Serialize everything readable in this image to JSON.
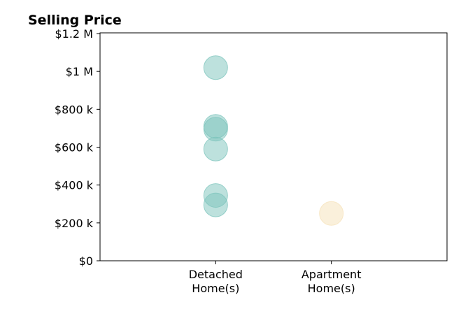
{
  "chart_data": {
    "type": "scatter",
    "title": "Selling Price",
    "xlabel": "",
    "ylabel": "",
    "categories": [
      "Detached\nHome(s)",
      "Apartment\nHome(s)"
    ],
    "xlim": [
      -1,
      2
    ],
    "ylim": [
      0,
      1200000
    ],
    "yticks": [
      0,
      200000,
      400000,
      600000,
      800000,
      1000000,
      1200000
    ],
    "ytick_labels": [
      "$0",
      "$200 k",
      "$400 k",
      "$600 k",
      "$800 k",
      "$1 M",
      "$1.2 M"
    ],
    "grid": false,
    "series": [
      {
        "category": "Detached\nHome(s)",
        "color": "#7cc4bc",
        "values": [
          1020000,
          710000,
          695000,
          590000,
          345000,
          295000
        ]
      },
      {
        "category": "Apartment\nHome(s)",
        "color": "#f5e2b8",
        "values": [
          250000
        ]
      }
    ]
  }
}
